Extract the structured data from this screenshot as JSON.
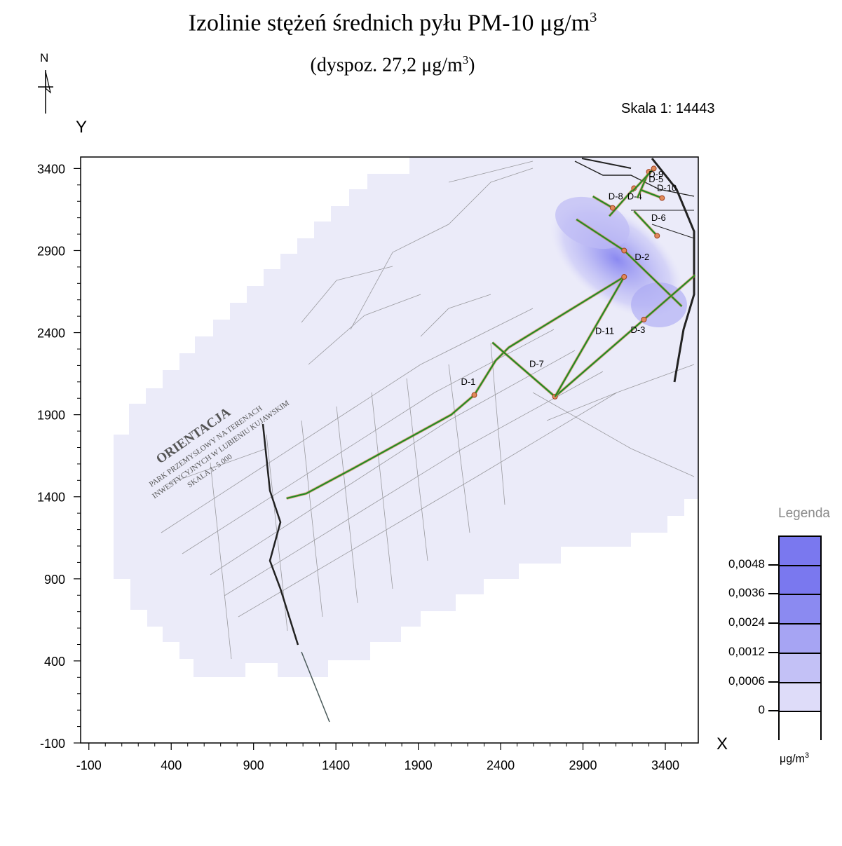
{
  "title": {
    "main": "Izolinie stężeń średnich pyłu PM-10 μg/m",
    "main_sup": "3",
    "sub": "(dyspoz. 27,2 μg/m",
    "sub_sup": "3",
    "sub_end": ")"
  },
  "north_label": "N",
  "scale_text": "Skala 1: 14443",
  "axes": {
    "y_label": "Y",
    "x_label": "X",
    "x_ticks": [
      "-100",
      "400",
      "900",
      "1400",
      "1900",
      "2400",
      "2900",
      "3400"
    ],
    "y_ticks": [
      "3400",
      "2900",
      "2400",
      "1900",
      "1400",
      "900",
      "400",
      "-100"
    ]
  },
  "roads": [
    {
      "label": "D-1",
      "points": [
        [
          1100,
          1390
        ],
        [
          1220,
          1420
        ],
        [
          1500,
          1570
        ],
        [
          2100,
          1900
        ],
        [
          2240,
          2020
        ],
        [
          2370,
          2230
        ],
        [
          2450,
          2310
        ],
        [
          3150,
          2740
        ]
      ]
    },
    {
      "label": "D-2",
      "points": [
        [
          2860,
          3090
        ],
        [
          3150,
          2900
        ],
        [
          3500,
          2560
        ]
      ]
    },
    {
      "label": "D-3",
      "points": [
        [
          2730,
          2010
        ],
        [
          3270,
          2480
        ],
        [
          3580,
          2750
        ]
      ]
    },
    {
      "label": "D-4",
      "points": [
        [
          3060,
          3110
        ],
        [
          3210,
          3280
        ]
      ]
    },
    {
      "label": "D-5",
      "points": [
        [
          3230,
          3220
        ],
        [
          3300,
          3380
        ]
      ]
    },
    {
      "label": "D-6",
      "points": [
        [
          3210,
          3140
        ],
        [
          3350,
          2990
        ]
      ]
    },
    {
      "label": "D-7",
      "points": [
        [
          2350,
          2340
        ],
        [
          2730,
          2010
        ]
      ]
    },
    {
      "label": "D-8",
      "points": [
        [
          2960,
          3230
        ],
        [
          3080,
          3160
        ]
      ]
    },
    {
      "label": "D-9",
      "points": [
        [
          3200,
          3260
        ],
        [
          3330,
          3400
        ]
      ]
    },
    {
      "label": "D-10",
      "points": [
        [
          3250,
          3270
        ],
        [
          3380,
          3220
        ]
      ]
    },
    {
      "label": "D-11",
      "points": [
        [
          2730,
          2010
        ],
        [
          3150,
          2740
        ]
      ]
    }
  ],
  "legend": {
    "title": "Legenda",
    "unit": "μg/m",
    "unit_sup": "3",
    "values": [
      "0,0048",
      "0,0036",
      "0,0024",
      "0,0012",
      "0,0006",
      "0"
    ],
    "colors": [
      "#7a78ef",
      "#8b8af1",
      "#a6a4f3",
      "#c3c1f6",
      "#dedcf9",
      "#ffffff"
    ]
  },
  "colors": {
    "plume_base": "#ebebf9",
    "road": "#228b22",
    "road_orange": "#d9824a"
  }
}
